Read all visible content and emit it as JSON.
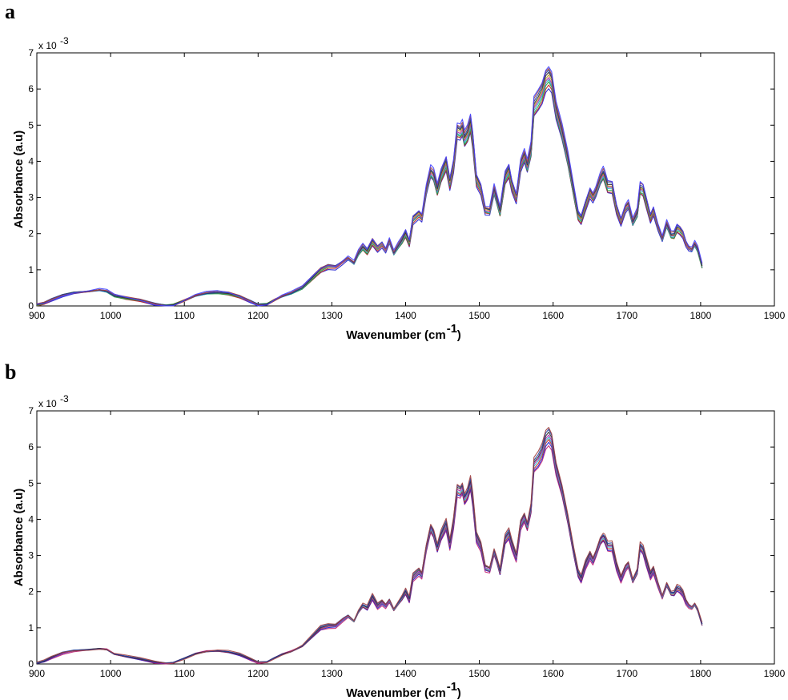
{
  "chart_data": [
    {
      "panel": "a",
      "type": "line",
      "xlabel": "Wavenumber (cm",
      "xlabel_sup": "-1",
      "xlabel_close": ")",
      "ylabel": "Absorbance (a.u)",
      "y_multiplier": "x 10",
      "y_multiplier_exp": "-3",
      "xlim": [
        900,
        1900
      ],
      "ylim": [
        0,
        7
      ],
      "xticks": [
        900,
        1000,
        1100,
        1200,
        1300,
        1400,
        1500,
        1600,
        1700,
        1800,
        1900
      ],
      "yticks": [
        0,
        1,
        2,
        3,
        4,
        5,
        6,
        7
      ],
      "grid": false,
      "legend": "none",
      "series_colors": [
        "#1f1fd0",
        "#c02020",
        "#20a040",
        "#20b0c0",
        "#b020b0",
        "#c0a020",
        "#303030",
        "#2040a0",
        "#a04040",
        "#4040ff"
      ],
      "x": [
        900,
        910,
        920,
        935,
        950,
        970,
        985,
        995,
        1005,
        1020,
        1040,
        1060,
        1075,
        1085,
        1100,
        1115,
        1130,
        1145,
        1160,
        1175,
        1190,
        1200,
        1212,
        1222,
        1232,
        1245,
        1260,
        1275,
        1285,
        1295,
        1305,
        1315,
        1322,
        1330,
        1336,
        1342,
        1348,
        1355,
        1362,
        1368,
        1373,
        1378,
        1384,
        1390,
        1395,
        1400,
        1405,
        1410,
        1418,
        1422,
        1428,
        1434,
        1438,
        1443,
        1448,
        1455,
        1460,
        1465,
        1470,
        1474,
        1477,
        1480,
        1484,
        1488,
        1491,
        1496,
        1502,
        1508,
        1514,
        1520,
        1524,
        1528,
        1535,
        1540,
        1544,
        1550,
        1556,
        1561,
        1565,
        1570,
        1574,
        1580,
        1585,
        1590,
        1594,
        1598,
        1604,
        1612,
        1620,
        1628,
        1634,
        1638,
        1644,
        1650,
        1654,
        1658,
        1664,
        1668,
        1670,
        1674,
        1680,
        1686,
        1692,
        1698,
        1702,
        1708,
        1714,
        1718,
        1722,
        1726,
        1732,
        1736,
        1742,
        1748,
        1754,
        1760,
        1764,
        1768,
        1772,
        1776,
        1780,
        1784,
        1788,
        1792,
        1796,
        1802
      ],
      "series": [
        {
          "values": [
            0.03,
            0.08,
            0.18,
            0.3,
            0.37,
            0.4,
            0.44,
            0.4,
            0.28,
            0.22,
            0.16,
            0.06,
            0.01,
            0.03,
            0.15,
            0.28,
            0.35,
            0.37,
            0.34,
            0.26,
            0.13,
            0.04,
            0.05,
            0.16,
            0.26,
            0.35,
            0.5,
            0.8,
            1.0,
            1.1,
            1.08,
            1.22,
            1.32,
            1.18,
            1.45,
            1.62,
            1.5,
            1.78,
            1.6,
            1.72,
            1.55,
            1.8,
            1.45,
            1.65,
            1.8,
            2.0,
            1.75,
            2.4,
            2.55,
            2.45,
            3.2,
            3.7,
            3.6,
            3.2,
            3.6,
            3.95,
            3.4,
            3.9,
            4.85,
            4.8,
            4.9,
            4.6,
            4.75,
            5.05,
            4.6,
            3.5,
            3.25,
            2.65,
            2.62,
            3.2,
            2.9,
            2.6,
            3.55,
            3.75,
            3.35,
            3.0,
            3.9,
            4.15,
            3.85,
            4.3,
            5.5,
            5.7,
            5.9,
            6.25,
            6.35,
            6.2,
            5.4,
            4.8,
            4.05,
            3.15,
            2.5,
            2.4,
            2.8,
            3.15,
            3.0,
            3.15,
            3.5,
            3.65,
            3.55,
            3.3,
            3.3,
            2.7,
            2.35,
            2.7,
            2.8,
            2.3,
            2.55,
            3.25,
            3.2,
            2.9,
            2.45,
            2.65,
            2.2,
            1.85,
            2.25,
            1.95,
            1.95,
            2.15,
            2.1,
            2.0,
            1.75,
            1.6,
            1.55,
            1.7,
            1.55,
            1.1
          ]
        }
      ]
    },
    {
      "panel": "b",
      "type": "line",
      "xlabel": "Wavenumber (cm",
      "xlabel_sup": "-1",
      "xlabel_close": ")",
      "ylabel": "Absorbance (a.u)",
      "y_multiplier": "x 10",
      "y_multiplier_exp": "-3",
      "xlim": [
        900,
        1900
      ],
      "ylim": [
        0,
        7
      ],
      "xticks": [
        900,
        1000,
        1100,
        1200,
        1300,
        1400,
        1500,
        1600,
        1700,
        1800,
        1900
      ],
      "yticks": [
        0,
        1,
        2,
        3,
        4,
        5,
        6,
        7
      ],
      "grid": false,
      "legend": "none",
      "series_colors": [
        "#c02070",
        "#1f1fd0",
        "#c02020",
        "#20b0c0",
        "#b020b0",
        "#303030",
        "#2040a0",
        "#a04040"
      ],
      "x": [
        900,
        910,
        920,
        935,
        950,
        970,
        985,
        995,
        1005,
        1020,
        1040,
        1060,
        1075,
        1085,
        1100,
        1115,
        1130,
        1145,
        1160,
        1175,
        1190,
        1200,
        1212,
        1222,
        1232,
        1245,
        1260,
        1275,
        1285,
        1295,
        1305,
        1315,
        1322,
        1330,
        1336,
        1342,
        1348,
        1355,
        1362,
        1368,
        1373,
        1378,
        1384,
        1390,
        1395,
        1400,
        1405,
        1410,
        1418,
        1422,
        1428,
        1434,
        1438,
        1443,
        1448,
        1455,
        1460,
        1465,
        1470,
        1474,
        1477,
        1480,
        1484,
        1488,
        1491,
        1496,
        1502,
        1508,
        1514,
        1520,
        1524,
        1528,
        1535,
        1540,
        1544,
        1550,
        1556,
        1561,
        1565,
        1570,
        1574,
        1580,
        1585,
        1590,
        1594,
        1598,
        1604,
        1612,
        1620,
        1628,
        1634,
        1638,
        1644,
        1650,
        1654,
        1658,
        1664,
        1668,
        1670,
        1674,
        1680,
        1686,
        1692,
        1698,
        1702,
        1708,
        1714,
        1718,
        1722,
        1726,
        1732,
        1736,
        1742,
        1748,
        1754,
        1760,
        1764,
        1768,
        1772,
        1776,
        1780,
        1784,
        1788,
        1792,
        1796,
        1802
      ],
      "series": [
        {
          "values": [
            0.03,
            0.08,
            0.18,
            0.3,
            0.36,
            0.39,
            0.42,
            0.4,
            0.28,
            0.22,
            0.14,
            0.05,
            0.01,
            0.03,
            0.15,
            0.28,
            0.35,
            0.37,
            0.34,
            0.26,
            0.13,
            0.04,
            0.05,
            0.16,
            0.26,
            0.35,
            0.5,
            0.8,
            1.0,
            1.05,
            1.05,
            1.22,
            1.32,
            1.18,
            1.45,
            1.62,
            1.55,
            1.85,
            1.6,
            1.7,
            1.6,
            1.75,
            1.5,
            1.68,
            1.82,
            2.0,
            1.78,
            2.4,
            2.55,
            2.45,
            3.2,
            3.75,
            3.6,
            3.2,
            3.55,
            3.85,
            3.3,
            3.9,
            4.8,
            4.75,
            4.85,
            4.55,
            4.7,
            5.0,
            4.55,
            3.5,
            3.25,
            2.65,
            2.6,
            3.1,
            2.85,
            2.55,
            3.45,
            3.6,
            3.3,
            2.95,
            3.85,
            4.05,
            3.8,
            4.3,
            5.5,
            5.65,
            5.85,
            6.2,
            6.3,
            6.15,
            5.4,
            4.8,
            4.0,
            3.1,
            2.5,
            2.35,
            2.75,
            3.0,
            2.85,
            3.05,
            3.4,
            3.5,
            3.45,
            3.25,
            3.25,
            2.7,
            2.35,
            2.65,
            2.75,
            2.3,
            2.55,
            3.25,
            3.15,
            2.85,
            2.45,
            2.6,
            2.2,
            1.85,
            2.2,
            1.95,
            1.95,
            2.1,
            2.05,
            1.95,
            1.72,
            1.6,
            1.55,
            1.65,
            1.5,
            1.1
          ]
        }
      ]
    }
  ],
  "panel_labels": {
    "a": "a",
    "b": "b"
  }
}
